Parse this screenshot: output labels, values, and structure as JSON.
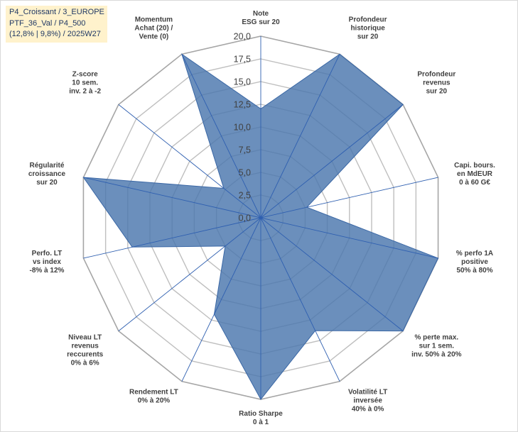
{
  "info_box": {
    "line1": "P4_Croissant / 3_EUROPE",
    "line2": "PTF_36_Val / P4_500",
    "line3": "(12,8% | 9,8%) / 2025W27"
  },
  "colors": {
    "fill": "#4a76ad",
    "stroke": "#3a67a5",
    "spoke": "#2e5fb0",
    "grid": "#bfbfbf",
    "outer_grid": "#a6a6a6",
    "info_bg": "#fff2cc"
  },
  "chart_data": {
    "type": "radar",
    "rmin": 0,
    "rmax": 20,
    "ticks": [
      "0,0",
      "2,5",
      "5,0",
      "7,5",
      "10,0",
      "12,5",
      "15,0",
      "17,5",
      "20,0"
    ],
    "tick_values": [
      0,
      2.5,
      5,
      7.5,
      10,
      12.5,
      15,
      17.5,
      20
    ],
    "grid": true,
    "categories": [
      {
        "label": [
          "Note",
          "ESG sur 20"
        ],
        "value": 12
      },
      {
        "label": [
          "Profondeur",
          "historique",
          "sur 20"
        ],
        "value": 20
      },
      {
        "label": [
          "Profondeur",
          "revenus",
          "sur 20"
        ],
        "value": 20
      },
      {
        "label": [
          "Capi. bours.",
          "en MdEUR",
          "0 à 60 G€"
        ],
        "value": 5.2
      },
      {
        "label": [
          "% perfo 1A",
          "positive",
          "50% à 80%"
        ],
        "value": 20
      },
      {
        "label": [
          "% perte max.",
          "sur 1 sem.",
          "inv. 50% à 20%"
        ],
        "value": 20
      },
      {
        "label": [
          "Volatilité LT",
          "inversée",
          "40% à 0%"
        ],
        "value": 13.8
      },
      {
        "label": [
          "Ratio Sharpe",
          "0 à 1"
        ],
        "value": 20
      },
      {
        "label": [
          "Rendement LT",
          "0% à 20%"
        ],
        "value": 11.8
      },
      {
        "label": [
          "Niveau LT",
          "revenus",
          "reccurents",
          "0% à 6%"
        ],
        "value": 5
      },
      {
        "label": [
          "Perfo. LT",
          "vs index",
          "-8% à 12%"
        ],
        "value": 14.5
      },
      {
        "label": [
          "Régularité",
          "croissance",
          "sur 20"
        ],
        "value": 20
      },
      {
        "label": [
          "Z-score",
          "10 sem.",
          "inv. 2 à -2"
        ],
        "value": 5.2
      },
      {
        "label": [
          "Momentum",
          "Achat (20) /",
          "Vente (0)"
        ],
        "value": 20
      }
    ]
  }
}
